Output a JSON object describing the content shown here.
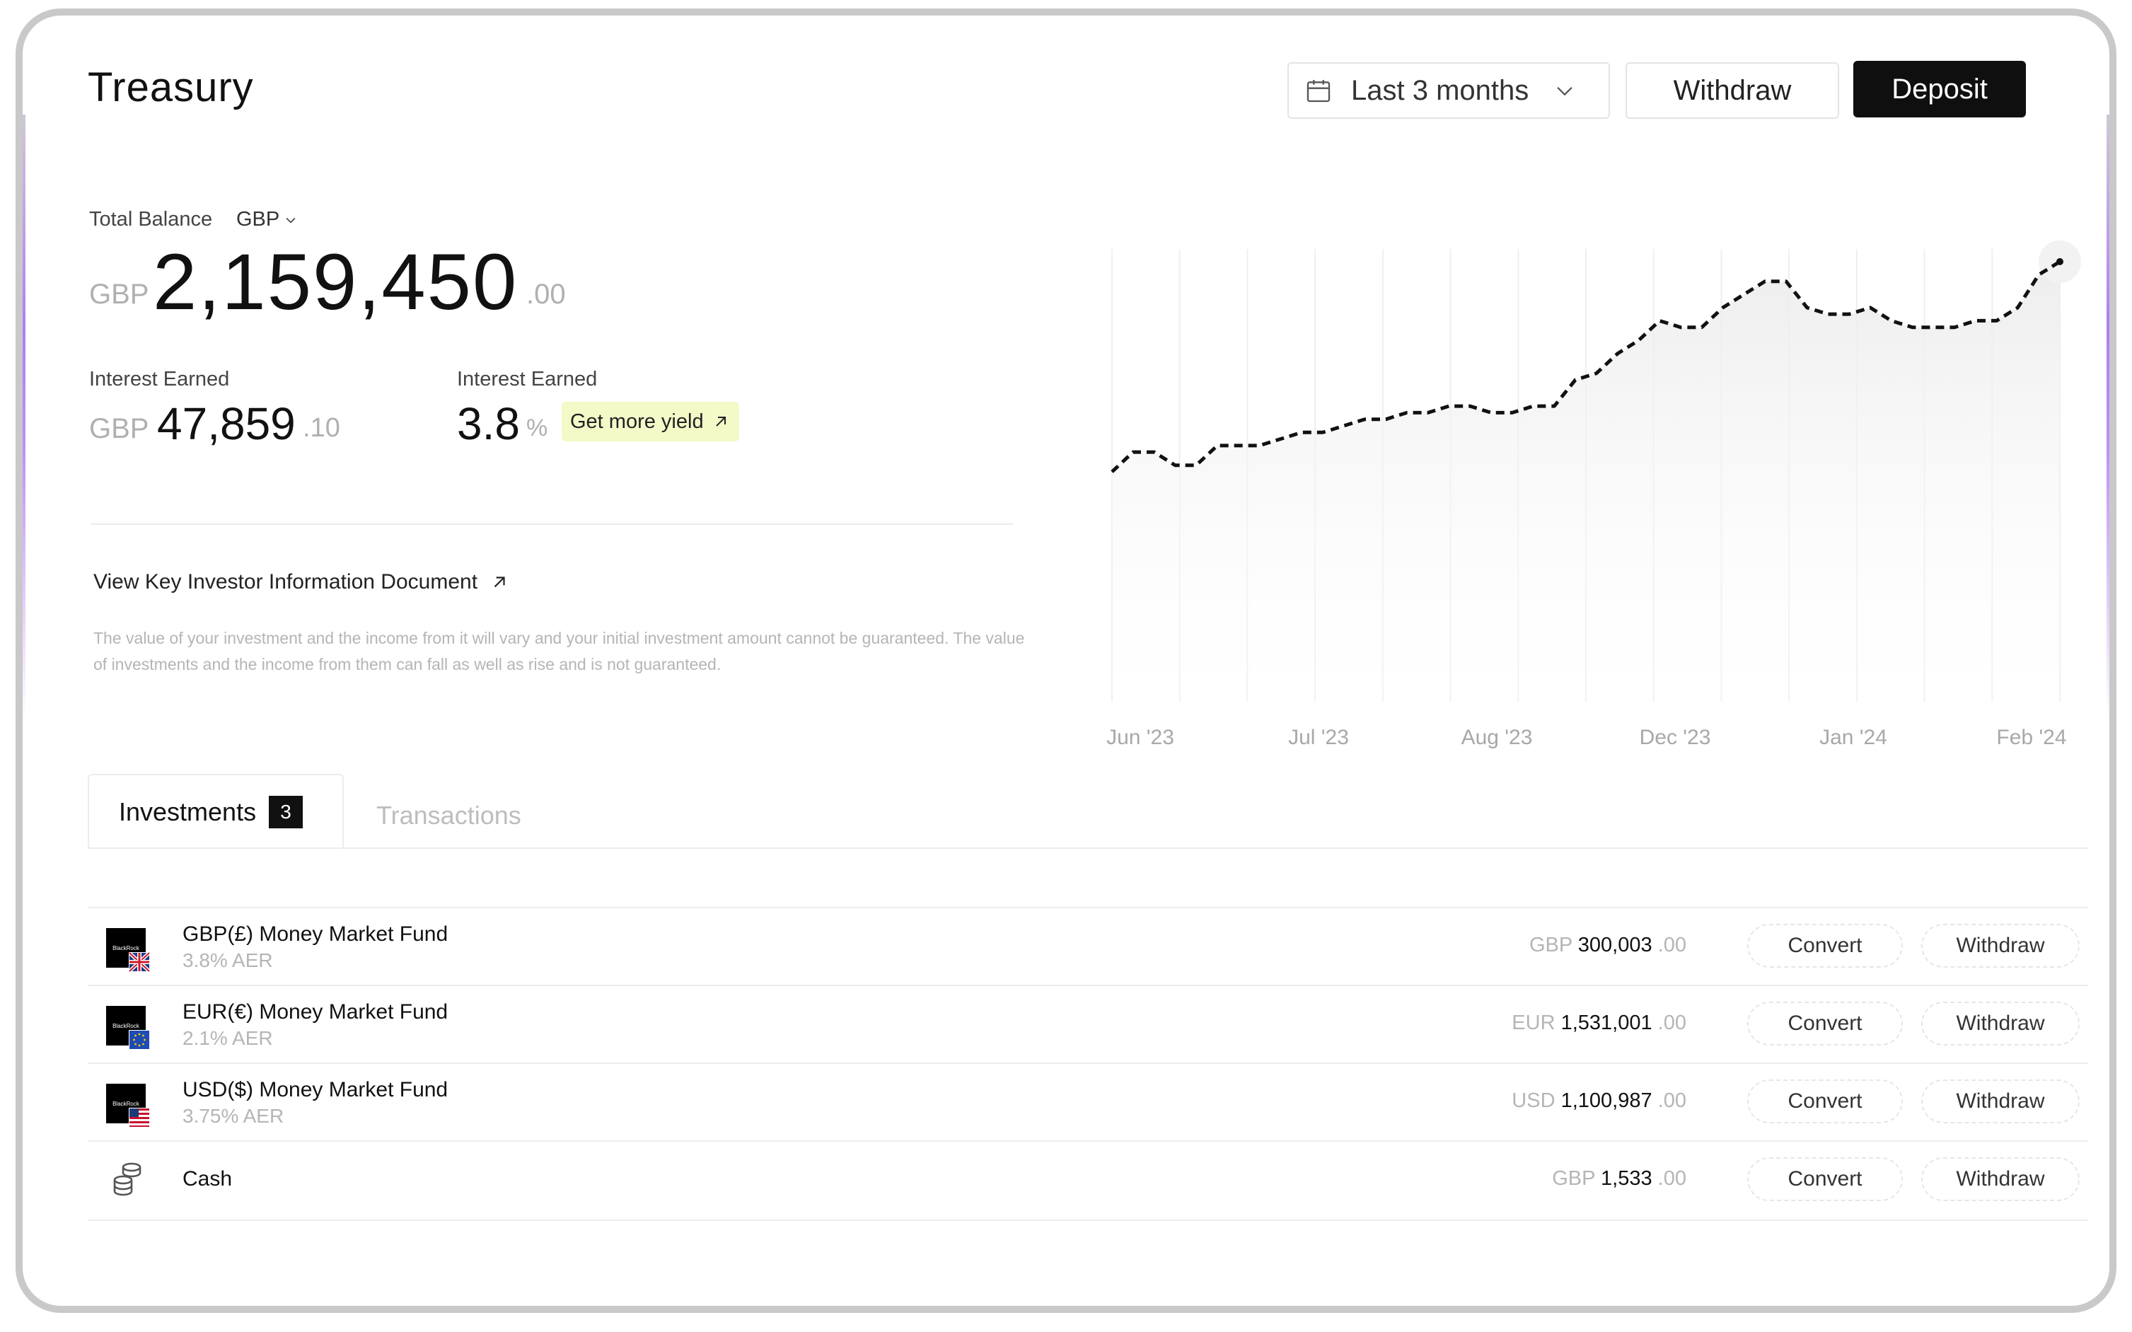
{
  "header": {
    "title": "Treasury",
    "range_label": "Last 3 months",
    "withdraw_label": "Withdraw",
    "deposit_label": "Deposit"
  },
  "balance": {
    "label": "Total Balance",
    "currency_selector": "GBP",
    "currency": "GBP",
    "amount": "2,159,450",
    "decimals": ".00"
  },
  "interest": [
    {
      "label": "Interest Earned",
      "currency": "GBP",
      "amount": "47,859",
      "decimals": ".10"
    },
    {
      "label": "Interest Earned",
      "amount": "3.8",
      "unit": "%",
      "cta": "Get more yield"
    }
  ],
  "kiid": {
    "link_label": "View Key Investor Information Document",
    "disclaimer": "The value of your investment and the income from it will vary and your initial investment amount cannot be guaranteed. The value of investments and the income from them can fall as well as rise and is not guaranteed."
  },
  "chart_data": {
    "type": "line",
    "title": "",
    "xlabel": "",
    "ylabel": "",
    "x_ticks": [
      "Jun '23",
      "Jul '23",
      "Aug '23",
      "Dec '23",
      "Jan '24",
      "Feb '24"
    ],
    "grid": "vertical",
    "style": "dashed line with light area fill",
    "series": [
      {
        "values": [
          35,
          38,
          38,
          36,
          36,
          39,
          39,
          39,
          40,
          41,
          41,
          42,
          43,
          43,
          44,
          44,
          45,
          45,
          44,
          44,
          45,
          45,
          49,
          50,
          53,
          55,
          58,
          57,
          57,
          60,
          62,
          64,
          64,
          60,
          59,
          59,
          60,
          58,
          57,
          57,
          57,
          58,
          58,
          60,
          65,
          67
        ]
      }
    ],
    "ylim": [
      0,
      70
    ]
  },
  "tabs": {
    "investments_label": "Investments",
    "investments_count": "3",
    "transactions_label": "Transactions"
  },
  "investments": [
    {
      "name": "GBP(£) Money Market Fund",
      "rate": "3.8% AER",
      "currency": "GBP",
      "amount": "300,003",
      "decimals": ".00",
      "convert": "Convert",
      "withdraw": "Withdraw",
      "logo_text": "BlackRock",
      "flag": "uk-flag-icon"
    },
    {
      "name": "EUR(€) Money Market Fund",
      "rate": "2.1% AER",
      "currency": "EUR",
      "amount": "1,531,001",
      "decimals": ".00",
      "convert": "Convert",
      "withdraw": "Withdraw",
      "logo_text": "BlackRock",
      "flag": "eu-flag-icon"
    },
    {
      "name": "USD($) Money Market Fund",
      "rate": "3.75% AER",
      "currency": "USD",
      "amount": "1,100,987",
      "decimals": ".00",
      "convert": "Convert",
      "withdraw": "Withdraw",
      "logo_text": "BlackRock",
      "flag": "us-flag-icon"
    },
    {
      "name": "Cash",
      "currency": "GBP",
      "amount": "1,533",
      "decimals": ".00",
      "convert": "Convert",
      "withdraw": "Withdraw",
      "icon": "coins-icon"
    }
  ]
}
